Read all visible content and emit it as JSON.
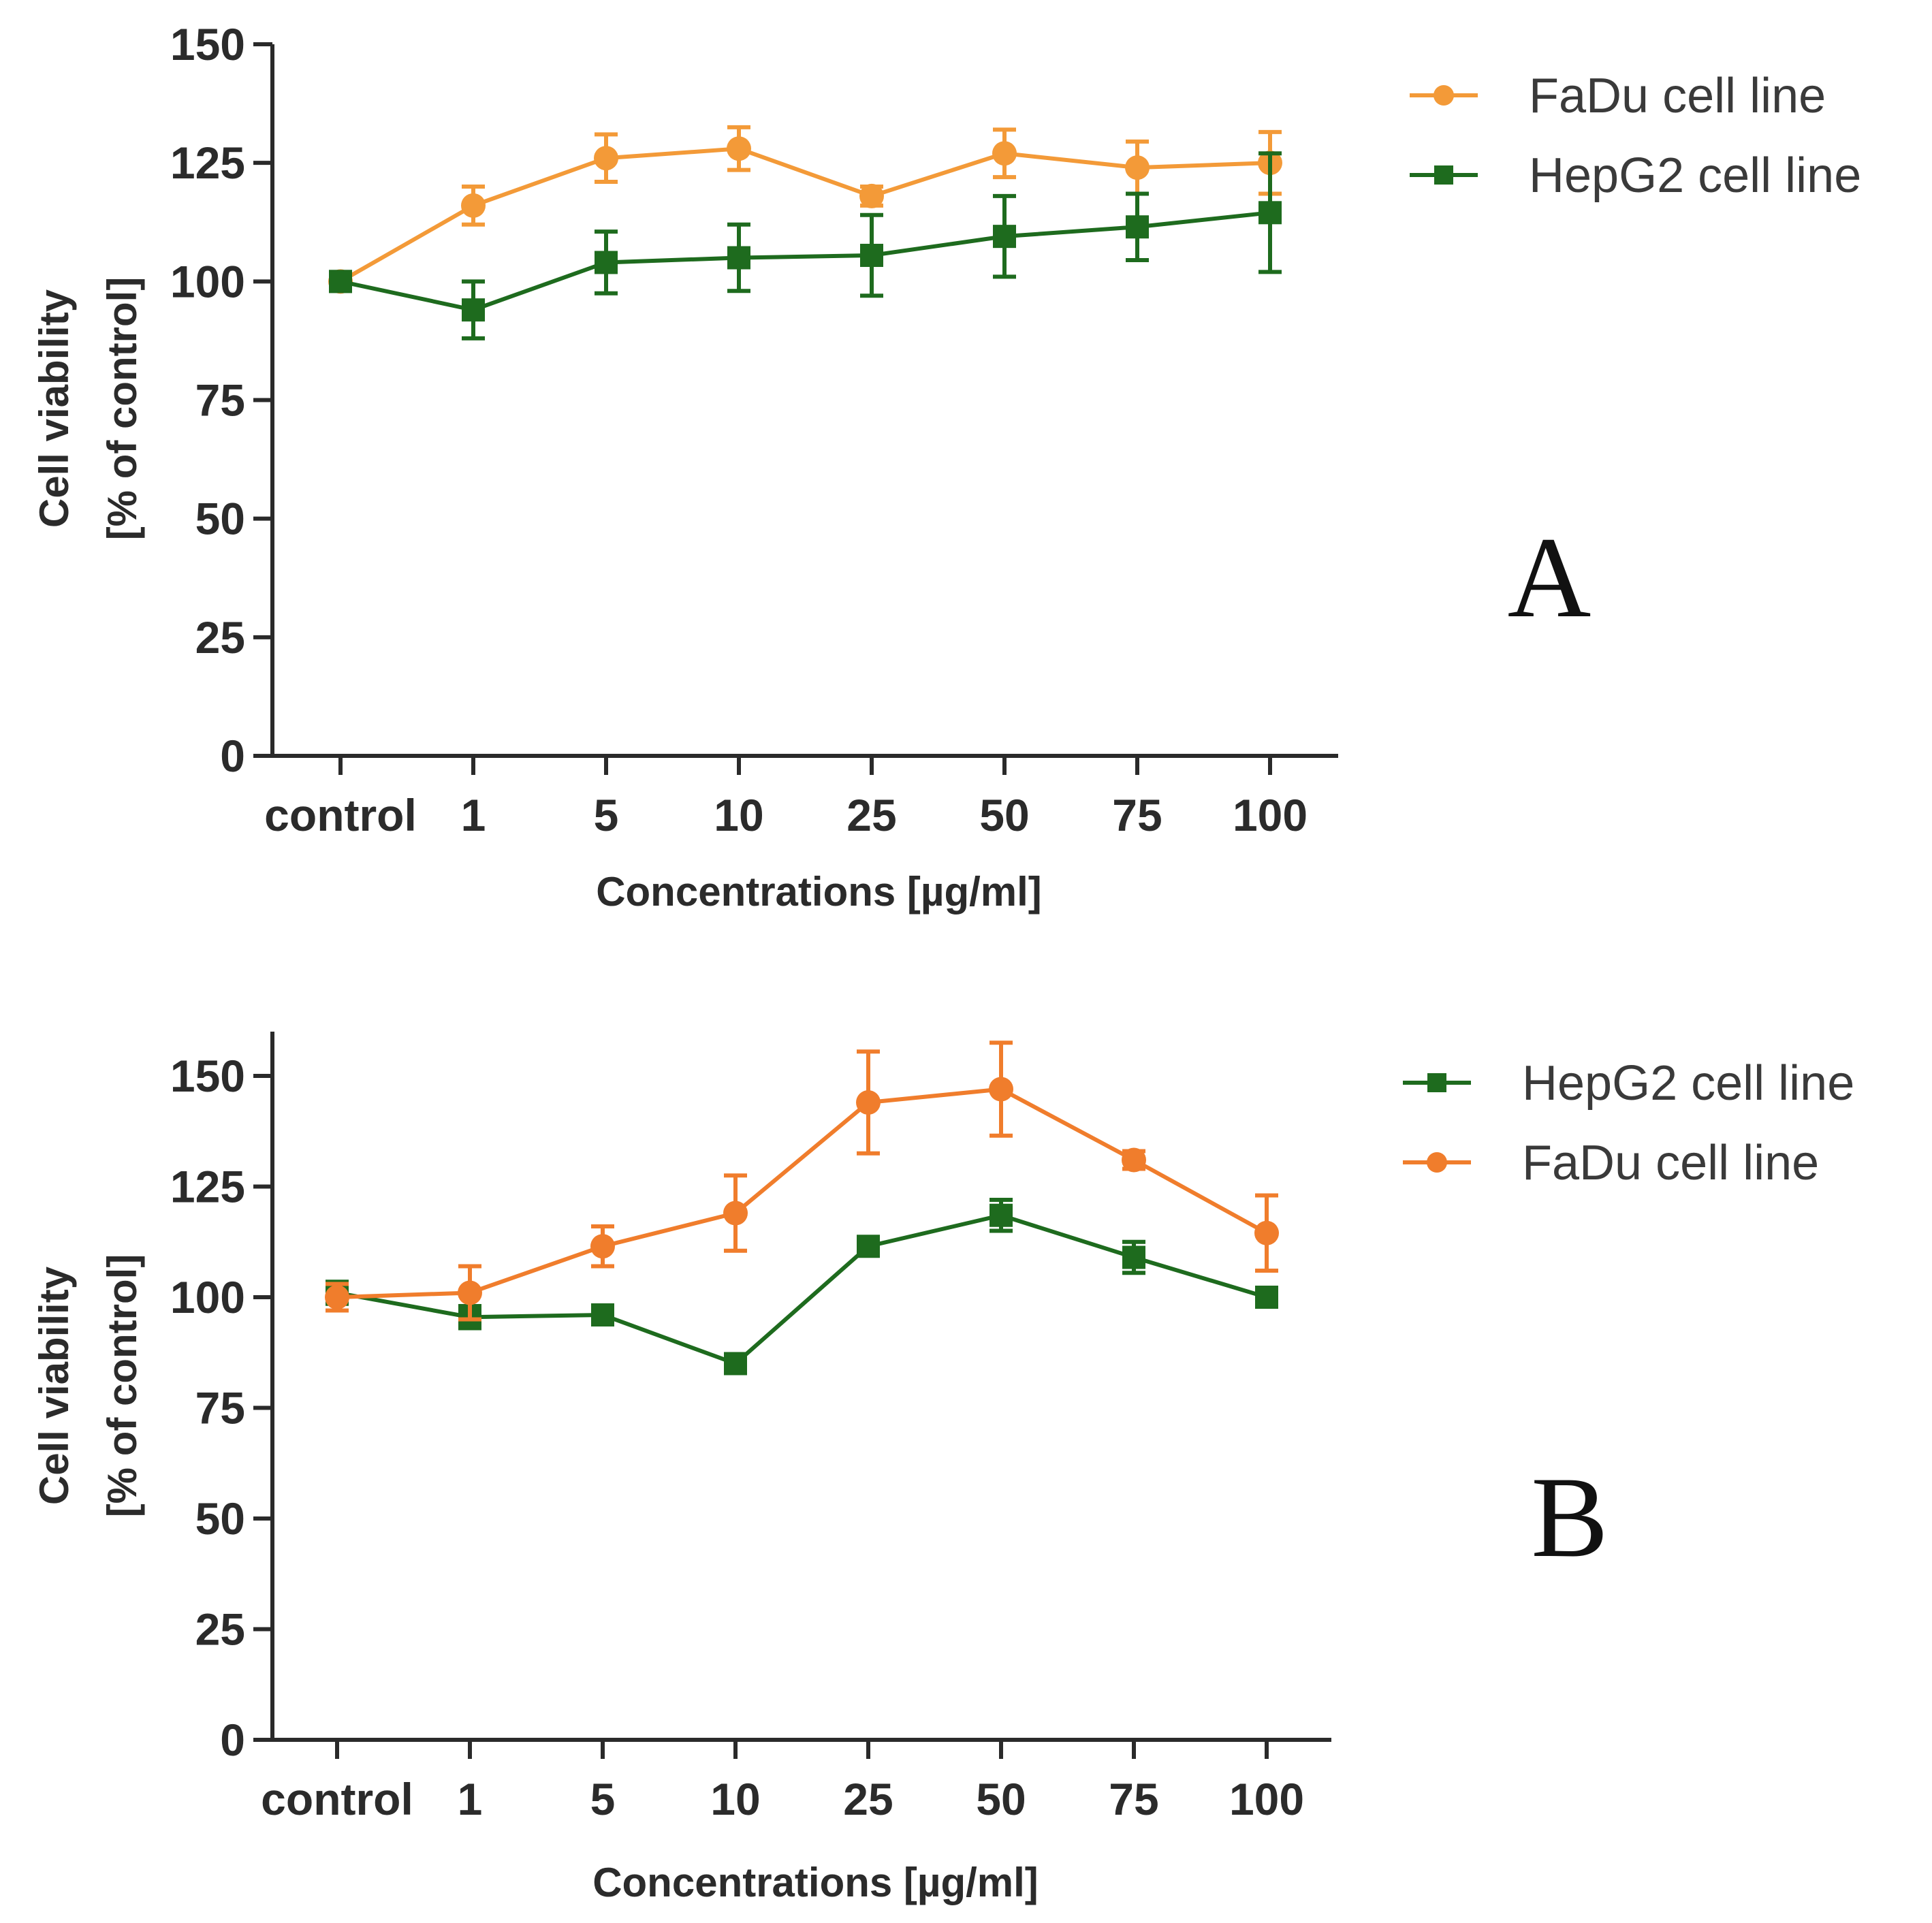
{
  "chart_data": [
    {
      "type": "line",
      "panel_label": "A",
      "categories": [
        "control",
        "1",
        "5",
        "10",
        "25",
        "50",
        "75",
        "100"
      ],
      "xlabel": "Concentrations [µg/ml]",
      "ylabel_line1": "Cell viability",
      "ylabel_line2": "[% of control]",
      "ylim": [
        0,
        150
      ],
      "yticks": [
        "0",
        "25",
        "50",
        "75",
        "100",
        "125",
        "150"
      ],
      "legend_position": "top-right",
      "series": [
        {
          "name": "FaDu cell line",
          "color": "#f39a38",
          "marker": "circle",
          "values": [
            100,
            116,
            126,
            128,
            118,
            127,
            124,
            125
          ],
          "errors": [
            1.5,
            4,
            5,
            4.5,
            2,
            5,
            5.5,
            6.5
          ]
        },
        {
          "name": "HepG2 cell line",
          "color": "#1e6b1e",
          "marker": "square",
          "values": [
            100,
            94,
            104,
            105,
            105.5,
            109.5,
            111.5,
            114.5
          ],
          "errors": [
            2,
            6,
            6.5,
            7,
            8.5,
            8.5,
            7,
            12.5
          ]
        }
      ]
    },
    {
      "type": "line",
      "panel_label": "B",
      "categories": [
        "control",
        "1",
        "5",
        "10",
        "25",
        "50",
        "75",
        "100"
      ],
      "xlabel": "Concentrations [µg/ml]",
      "ylabel_line1": "Cell viability",
      "ylabel_line2": "[% of control]",
      "ylim": [
        0,
        160
      ],
      "yticks": [
        "0",
        "25",
        "50",
        "75",
        "100",
        "125",
        "150"
      ],
      "legend_position": "top-right",
      "series": [
        {
          "name": "HepG2 cell line",
          "color": "#1e6b1e",
          "marker": "square",
          "values": [
            101,
            95.5,
            96,
            85,
            111.5,
            118.5,
            109,
            100
          ],
          "errors": [
            2.5,
            2.5,
            2,
            1,
            1.5,
            3.5,
            3.5,
            1
          ]
        },
        {
          "name": "FaDu cell line",
          "color": "#f07d2c",
          "marker": "circle",
          "values": [
            100,
            101,
            111.5,
            119,
            144,
            147,
            131,
            114.5
          ],
          "errors": [
            3,
            6,
            4.5,
            8.5,
            11.5,
            10.5,
            2,
            8.5
          ]
        }
      ]
    }
  ]
}
